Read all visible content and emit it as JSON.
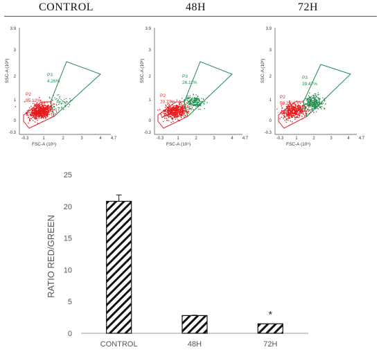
{
  "panel_titles": [
    "CONTROL",
    "48H",
    "72H"
  ],
  "flow_axes": {
    "x_label": "FSC-A (10⁶)",
    "y_label": "SSC-A (10⁶)",
    "x_ticks": [
      "-0.3",
      "1",
      "2",
      "3",
      "4",
      "4.7"
    ],
    "y_ticks": [
      "3.9",
      "3",
      "2",
      "1",
      "0",
      "-0.3"
    ]
  },
  "flow_panels": [
    {
      "title": "CONTROL",
      "p2_label": "P2",
      "p2_pct": "95.12%",
      "p3_label": "P3",
      "p3_pct": "4.26%",
      "p2_percent": 95.12,
      "p3_percent": 4.26
    },
    {
      "title": "48H",
      "p2_label": "P2",
      "p2_pct": "70.77%",
      "p3_label": "P3",
      "p3_pct": "26.11%",
      "p2_percent": 70.77,
      "p3_percent": 26.11
    },
    {
      "title": "72H",
      "p2_label": "P2",
      "p2_pct": "58.26%",
      "p3_label": "P3",
      "p3_pct": "39.47%",
      "p2_percent": 58.26,
      "p3_percent": 39.47
    }
  ],
  "colors": {
    "p2": "#e8191c",
    "p3": "#1f8a4c",
    "bar_stroke": "#111111",
    "axis": "#9a9a9a"
  },
  "chart_data": {
    "type": "bar",
    "categories": [
      "CONTROL",
      "48H",
      "72H"
    ],
    "values": [
      20.8,
      2.8,
      1.5
    ],
    "error_bars": [
      1.0,
      0.05,
      0.0
    ],
    "annotations": [
      "",
      "",
      "*"
    ],
    "ylabel": "RATIO RED/GREEN",
    "xlabel": "",
    "ylim": [
      0,
      25
    ],
    "yticks": [
      "0",
      "5",
      "10",
      "15",
      "20",
      "25"
    ],
    "fill": "diagonal-hatch"
  }
}
